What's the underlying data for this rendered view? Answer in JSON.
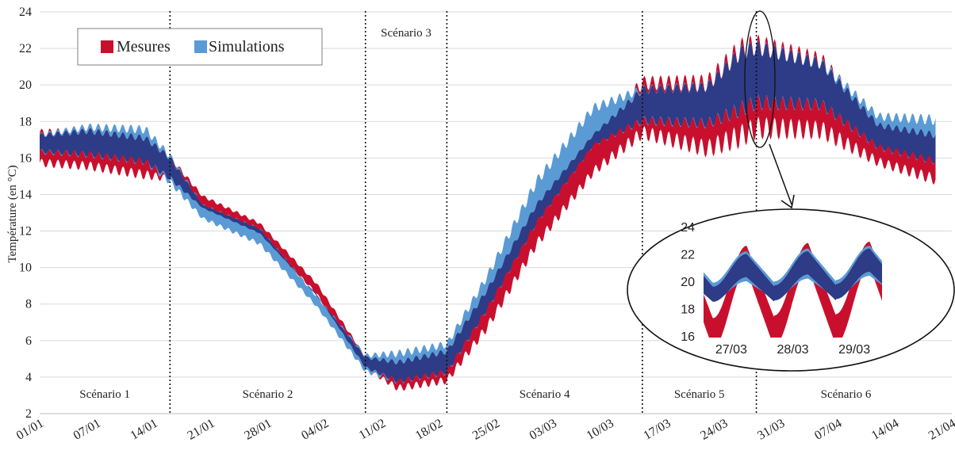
{
  "chart_data": {
    "type": "area",
    "ylabel": "Température (en °C)",
    "ylim": [
      2,
      24
    ],
    "yticks": [
      "2",
      "4",
      "6",
      "8",
      "10",
      "12",
      "14",
      "16",
      "18",
      "20",
      "22",
      "24"
    ],
    "x_ticks": [
      "01/01",
      "07/01",
      "14/01",
      "21/01",
      "28/01",
      "04/02",
      "11/02",
      "18/02",
      "25/02",
      "03/03",
      "10/03",
      "17/03",
      "24/03",
      "31/03",
      "07/04",
      "14/04",
      "21/04"
    ],
    "grid": true,
    "legend": {
      "placement": "top-left",
      "entries": [
        {
          "label": "Mesures",
          "color": "#c8102e"
        },
        {
          "label": "Simulations",
          "color": "#5b9bd5"
        }
      ]
    },
    "overlap_color": "#2e3b86",
    "scenario_dividers": [
      "17/01",
      "10/02",
      "20/02",
      "16/03",
      "30/03"
    ],
    "scenarios": [
      {
        "label": "Scénario 1",
        "from": "01/01",
        "to": "17/01"
      },
      {
        "label": "Scénario 2",
        "from": "17/01",
        "to": "10/02"
      },
      {
        "label": "Scénario 3",
        "from": "10/02",
        "to": "20/02"
      },
      {
        "label": "Scénario 4",
        "from": "20/02",
        "to": "16/03"
      },
      {
        "label": "Scénario 5",
        "from": "16/03",
        "to": "30/03"
      },
      {
        "label": "Scénario 6",
        "from": "30/03",
        "to": "21/04"
      }
    ],
    "series": [
      {
        "name": "Mesures",
        "x": [
          "01/01",
          "07/01",
          "14/01",
          "17/01",
          "21/01",
          "28/01",
          "04/02",
          "10/02",
          "14/02",
          "20/02",
          "25/02",
          "03/03",
          "10/03",
          "16/03",
          "24/03",
          "28/03",
          "30/03",
          "07/04",
          "14/04",
          "21/04"
        ],
        "min": [
          15.5,
          15.3,
          14.8,
          14.7,
          13.2,
          11.8,
          8.5,
          4.4,
          3.2,
          3.6,
          6.5,
          11.0,
          15.0,
          17.0,
          16.0,
          16.5,
          17.0,
          17.0,
          15.5,
          14.5
        ],
        "max": [
          17.6,
          17.7,
          17.3,
          16.2,
          14.0,
          12.5,
          9.2,
          5.2,
          5.0,
          5.6,
          9.0,
          13.6,
          17.4,
          20.5,
          20.6,
          22.6,
          22.8,
          21.8,
          18.0,
          17.5
        ]
      },
      {
        "name": "Simulations",
        "x": [
          "01/01",
          "07/01",
          "14/01",
          "17/01",
          "21/01",
          "28/01",
          "04/02",
          "10/02",
          "14/02",
          "20/02",
          "25/02",
          "03/03",
          "10/03",
          "16/03",
          "24/03",
          "28/03",
          "30/03",
          "07/04",
          "14/04",
          "21/04"
        ],
        "min": [
          16.2,
          16.0,
          15.6,
          14.5,
          12.6,
          11.2,
          7.8,
          4.2,
          3.6,
          4.1,
          7.6,
          12.3,
          16.6,
          17.8,
          17.6,
          18.2,
          18.6,
          18.6,
          16.4,
          15.6
        ],
        "max": [
          17.4,
          17.9,
          17.8,
          16.3,
          13.5,
          12.2,
          8.5,
          5.3,
          5.5,
          6.0,
          9.8,
          15.0,
          19.0,
          20.0,
          20.2,
          22.2,
          22.5,
          21.5,
          18.5,
          18.4
        ]
      }
    ],
    "inset": {
      "ylim": [
        16,
        24
      ],
      "yticks": [
        "16",
        "18",
        "20",
        "22",
        "24"
      ],
      "x_ticks": [
        "27/03",
        "28/03",
        "29/03"
      ],
      "series": [
        {
          "name": "Mesures",
          "x": [
            27.0,
            27.55,
            27.65,
            28.0,
            28.55,
            28.65,
            29.0,
            29.55,
            29.7
          ],
          "values": [
            17.3,
            22.5,
            22.3,
            19.5,
            22.8,
            22.4,
            19.6,
            22.9,
            21.0
          ]
        },
        {
          "name": "Simulations",
          "x": [
            27.0,
            27.55,
            27.65,
            28.0,
            28.55,
            28.65,
            29.0,
            29.55,
            29.7
          ],
          "values": [
            19.2,
            22.0,
            21.8,
            19.8,
            22.3,
            22.1,
            19.9,
            22.5,
            21.2
          ]
        }
      ]
    }
  }
}
